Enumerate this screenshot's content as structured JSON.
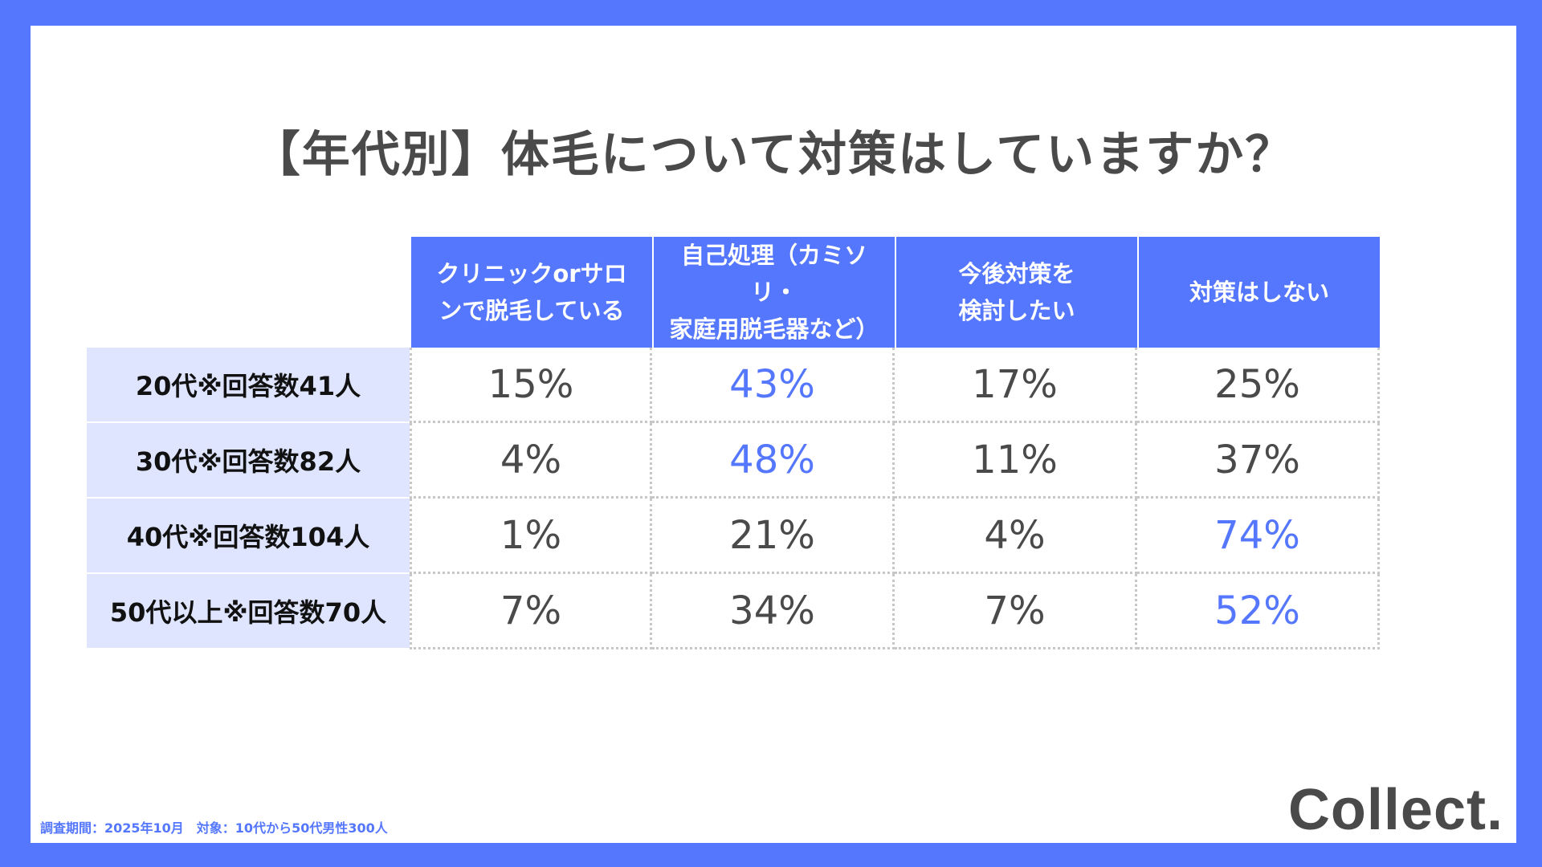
{
  "title": "【年代別】体毛について対策はしていますか？",
  "chart_data": {
    "type": "table",
    "columns": [
      "クリニックorサロンで脱毛している",
      "自己処理（カミソリ・家庭用脱毛器など）",
      "今後対策を検討したい",
      "対策はしない"
    ],
    "column_lines": [
      [
        "クリニックorサロ",
        "ンで脱毛している"
      ],
      [
        "自己処理（カミソリ・",
        "家庭用脱毛器など）"
      ],
      [
        "今後対策を",
        "検討したい"
      ],
      [
        "対策はしない"
      ]
    ],
    "rows": [
      {
        "label": "20代※回答数41人",
        "values": [
          "15%",
          "43%",
          "17%",
          "25%"
        ],
        "highlight": 1
      },
      {
        "label": "30代※回答数82人",
        "values": [
          "4%",
          "48%",
          "11%",
          "37%"
        ],
        "highlight": 1
      },
      {
        "label": "40代※回答数104人",
        "values": [
          "1%",
          "21%",
          "4%",
          "74%"
        ],
        "highlight": 3
      },
      {
        "label": "50代以上※回答数70人",
        "values": [
          "7%",
          "34%",
          "7%",
          "52%"
        ],
        "highlight": 3
      }
    ]
  },
  "footnote": "調査期間：2025年10月　対象：10代から50代男性300人",
  "logo": "Collect.",
  "colors": {
    "accent": "#5577fd",
    "rowhead_bg": "#dfe5ff",
    "text": "#4a4a4a"
  }
}
